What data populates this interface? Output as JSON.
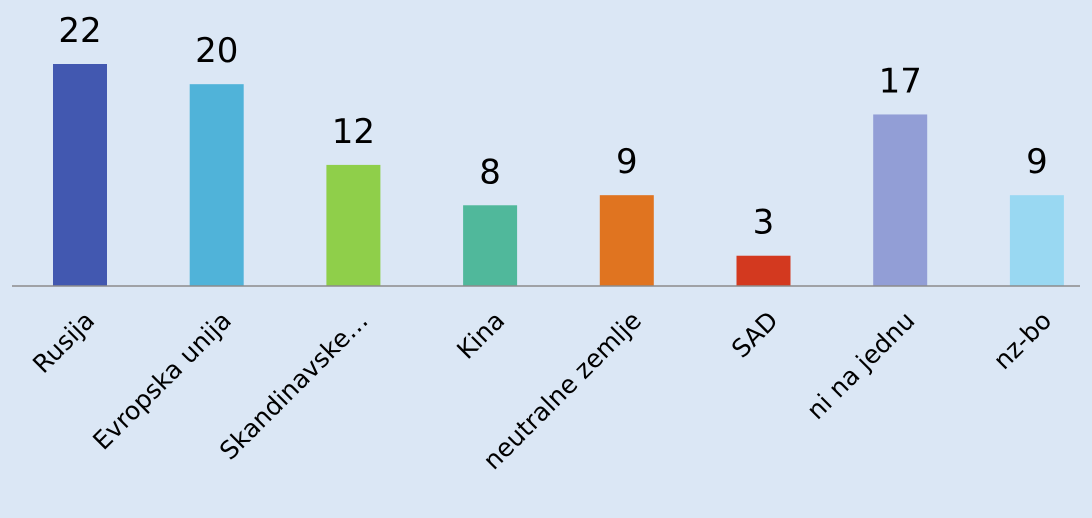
{
  "chart_data": {
    "type": "bar",
    "title": "",
    "xlabel": "",
    "ylabel": "",
    "ylim": [
      0,
      22
    ],
    "grid": false,
    "legend": "none",
    "categories": [
      "Rusija",
      "Evropska unija",
      "Skandinavske…",
      "Kina",
      "neutralne zemlje",
      "SAD",
      "ni na jednu",
      "nz-bo"
    ],
    "values": [
      22,
      20,
      12,
      8,
      9,
      3,
      17,
      9
    ],
    "colors": [
      "#4258b0",
      "#50b3d9",
      "#8fcf4a",
      "#50b89b",
      "#e07420",
      "#d3391f",
      "#929ed6",
      "#99d8f2"
    ],
    "axis_color": "#8c8c8c"
  }
}
